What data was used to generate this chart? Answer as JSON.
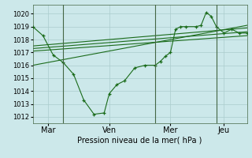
{
  "bg_color": "#cce8ea",
  "grid_color": "#aacccc",
  "line_color": "#1a6b1a",
  "xlabel": "Pression niveau de la mer( hPa )",
  "ylim": [
    1011.5,
    1020.7
  ],
  "yticks": [
    1012,
    1013,
    1014,
    1015,
    1016,
    1017,
    1018,
    1019,
    1020
  ],
  "xlim": [
    0,
    168
  ],
  "vlines": [
    24,
    96,
    144
  ],
  "xtick_positions": [
    12,
    60,
    108,
    150
  ],
  "xtick_labels": [
    "Mar",
    "Ven",
    "Mer",
    "Jeu"
  ],
  "line1_x": [
    0,
    8,
    16,
    24,
    32,
    40,
    48,
    56,
    60,
    66,
    72,
    80,
    88,
    96,
    100,
    104,
    108,
    112,
    116,
    120,
    128,
    132,
    136,
    140,
    144,
    150,
    156,
    162,
    168
  ],
  "line1_y": [
    1019.0,
    1018.3,
    1016.8,
    1016.2,
    1015.3,
    1013.3,
    1012.2,
    1012.3,
    1013.8,
    1014.5,
    1014.8,
    1015.8,
    1016.0,
    1016.0,
    1016.3,
    1016.7,
    1017.0,
    1018.8,
    1019.0,
    1019.0,
    1019.0,
    1019.1,
    1020.1,
    1019.8,
    1019.0,
    1018.5,
    1018.8,
    1018.5,
    1018.5
  ],
  "line2_x": [
    0,
    168
  ],
  "line2_y": [
    1017.1,
    1018.3
  ],
  "line3_x": [
    0,
    168
  ],
  "line3_y": [
    1017.3,
    1018.6
  ],
  "line4_x": [
    0,
    168
  ],
  "line4_y": [
    1017.5,
    1018.9
  ],
  "line5_x": [
    0,
    168
  ],
  "line5_y": [
    1016.0,
    1019.1
  ]
}
